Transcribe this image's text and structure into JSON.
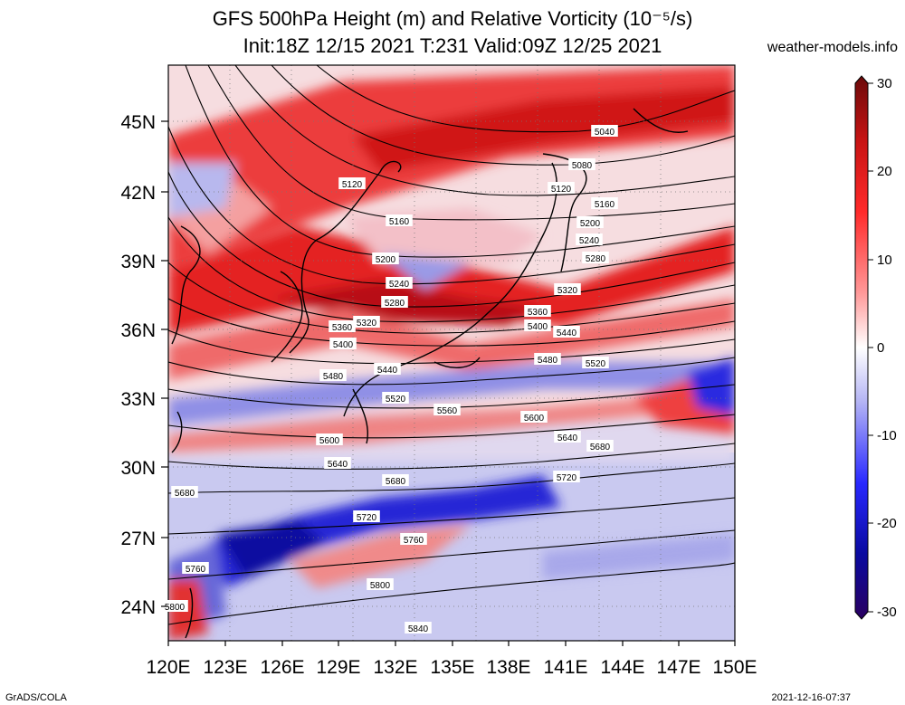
{
  "title_line1": "GFS 500hPa Height (m) and Relative Vorticity (10⁻⁵/s)",
  "title_line2": "Init:18Z 12/15 2021 T:231 Valid:09Z 12/25 2021",
  "site": "weather-models.info",
  "footer_left": "GrADS/COLA",
  "footer_right": "2021-12-16-07:37",
  "lat_labels": [
    "45N",
    "42N",
    "39N",
    "36N",
    "33N",
    "30N",
    "27N",
    "24N"
  ],
  "lon_labels": [
    "120E",
    "123E",
    "126E",
    "129E",
    "132E",
    "135E",
    "138E",
    "141E",
    "144E",
    "147E",
    "150E"
  ],
  "colorbar": {
    "tick_labels": [
      "30",
      "20",
      "10",
      "0",
      "-10",
      "-20",
      "-30"
    ],
    "colors": [
      "#5a0a0a",
      "#c81414",
      "#ff2a2a",
      "#ff8c8c",
      "#ffdcdc",
      "#ffffff",
      "#d6d6ff",
      "#8c8cff",
      "#2828ff",
      "#0a0aa0",
      "#28005a"
    ]
  },
  "contour_labels": [
    "5040",
    "5080",
    "5120",
    "5120",
    "5160",
    "5160",
    "5200",
    "5200",
    "5240",
    "5240",
    "5280",
    "5280",
    "5320",
    "5320",
    "5360",
    "5360",
    "5400",
    "5400",
    "5440",
    "5440",
    "5480",
    "5480",
    "5520",
    "5520",
    "5560",
    "5600",
    "5600",
    "5640",
    "5640",
    "5680",
    "5680",
    "5680",
    "5720",
    "5720",
    "5760",
    "5760",
    "5800",
    "5840",
    "5800"
  ],
  "field_colors": {
    "positive": "#e8141e",
    "strong_positive": "#b40a10",
    "negative": "#2020d0",
    "weak_negative": "#b4b4ee",
    "background": "#f2d6da"
  }
}
